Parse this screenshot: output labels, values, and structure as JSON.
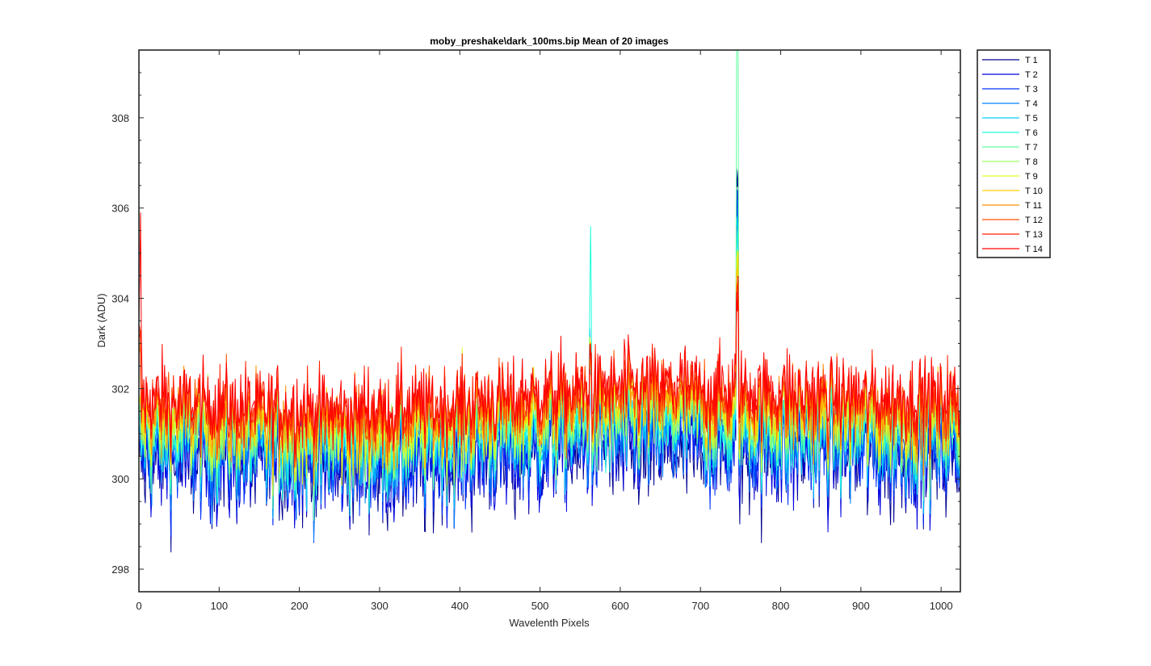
{
  "chart_data": {
    "type": "line",
    "title": "moby_preshake\\dark_100ms.bip  Mean of 20 images",
    "xlabel": "Wavelenth Pixels",
    "ylabel": "Dark (ADU)",
    "xlim": [
      0,
      1024
    ],
    "ylim": [
      297.5,
      309.5
    ],
    "xticks": [
      0,
      100,
      200,
      300,
      400,
      500,
      600,
      700,
      800,
      900,
      1000
    ],
    "yticks": [
      298,
      300,
      302,
      304,
      306,
      308
    ],
    "grid": false,
    "legend_position": "outside-top-right",
    "n_pixels": 1024,
    "description_of_values": "Each series is noisy dark signal vs pixel; values listed as per-series band (low, mean, high) plus spike features",
    "series": [
      {
        "name": "T 1",
        "color": "#00008f",
        "mean": 300.35,
        "low": 297.9,
        "high": 302.4
      },
      {
        "name": "T 2",
        "color": "#0000df",
        "mean": 300.45,
        "low": 298.0,
        "high": 302.5
      },
      {
        "name": "T 3",
        "color": "#0030ff",
        "mean": 300.6,
        "low": 298.2,
        "high": 302.6
      },
      {
        "name": "T 4",
        "color": "#0080ff",
        "mean": 300.75,
        "low": 298.4,
        "high": 302.7
      },
      {
        "name": "T 5",
        "color": "#00cfff",
        "mean": 300.9,
        "low": 298.6,
        "high": 302.8
      },
      {
        "name": "T 6",
        "color": "#20ffdf",
        "mean": 301.0,
        "low": 298.8,
        "high": 302.9
      },
      {
        "name": "T 7",
        "color": "#60ff9f",
        "mean": 301.1,
        "low": 299.0,
        "high": 303.0
      },
      {
        "name": "T 8",
        "color": "#9fff60",
        "mean": 301.2,
        "low": 299.2,
        "high": 303.0
      },
      {
        "name": "T 9",
        "color": "#dfff20",
        "mean": 301.3,
        "low": 299.4,
        "high": 303.1
      },
      {
        "name": "T 10",
        "color": "#ffcf00",
        "mean": 301.4,
        "low": 299.6,
        "high": 303.2
      },
      {
        "name": "T 11",
        "color": "#ff8f00",
        "mean": 301.5,
        "low": 299.8,
        "high": 303.3
      },
      {
        "name": "T 12",
        "color": "#ff5000",
        "mean": 301.6,
        "low": 300.0,
        "high": 303.4
      },
      {
        "name": "T 13",
        "color": "#ff2000",
        "mean": 301.7,
        "low": 300.2,
        "high": 303.5
      },
      {
        "name": "T 14",
        "color": "#ff0000",
        "mean": 301.8,
        "low": 300.4,
        "high": 303.6
      }
    ],
    "spikes": [
      {
        "x": 563,
        "peak": 305.6,
        "series": "T 6"
      },
      {
        "x": 746,
        "peak": 309.5,
        "series": "T 7"
      },
      {
        "x": 746,
        "peak": 306.4,
        "series": "T 3"
      },
      {
        "x": 2,
        "peak": 304.7,
        "series": "T 14"
      }
    ]
  },
  "colors": {
    "axis": "#262626",
    "background": "#ffffff"
  }
}
